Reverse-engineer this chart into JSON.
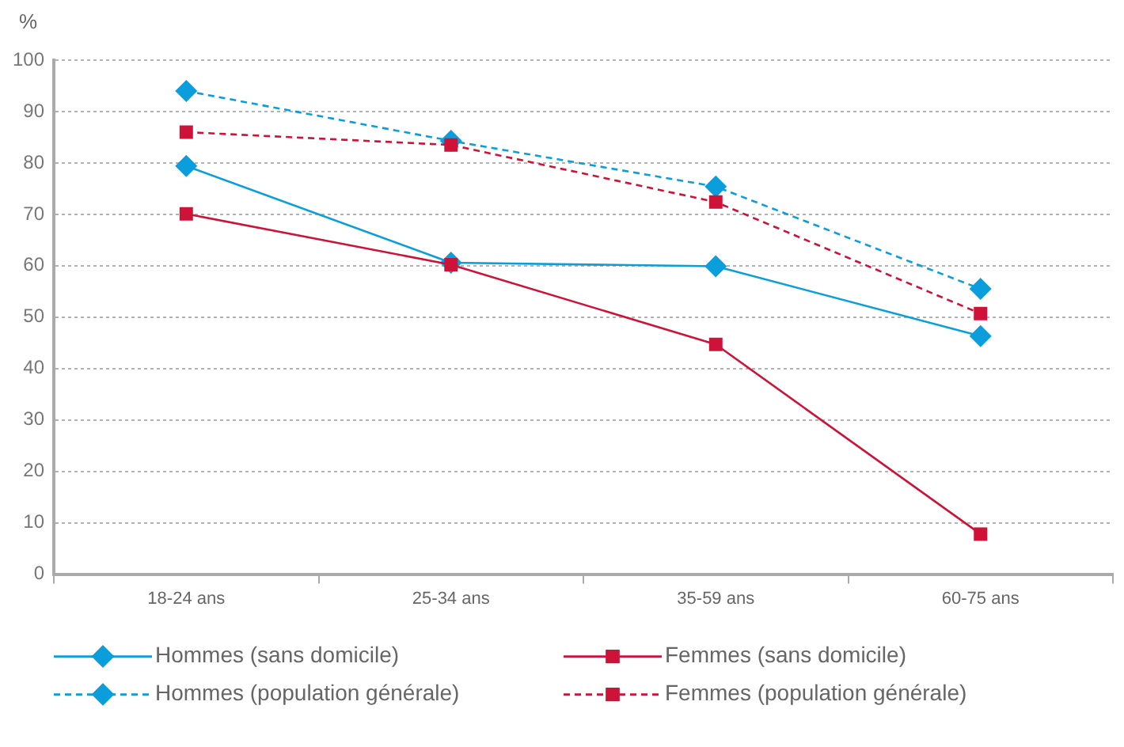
{
  "chart_data": {
    "type": "line",
    "ylabel": "%",
    "categories": [
      "18-24 ans",
      "25-34 ans",
      "35-59 ans",
      "60-75 ans"
    ],
    "series": [
      {
        "name": "Hommes (sans domicile)",
        "color": "#0a9fdc",
        "marker": "diamond",
        "line_style": "solid",
        "values": [
          79.4,
          60.6,
          59.9,
          46.3
        ]
      },
      {
        "name": "Femmes (sans domicile)",
        "color": "#cf1237",
        "marker": "square",
        "line_style": "solid",
        "values": [
          70.1,
          60.2,
          44.7,
          7.8
        ]
      },
      {
        "name": "Hommes (population générale)",
        "color": "#0a9fdc",
        "marker": "diamond",
        "line_style": "dashed",
        "values": [
          94.0,
          84.3,
          75.4,
          55.5
        ]
      },
      {
        "name": "Femmes (population générale)",
        "color": "#cf1237",
        "marker": "square",
        "line_style": "dashed",
        "values": [
          86.0,
          83.5,
          72.4,
          50.7
        ]
      }
    ],
    "ylim": [
      0,
      100
    ],
    "yticks": [
      0,
      10,
      20,
      30,
      40,
      50,
      60,
      70,
      80,
      90,
      100
    ],
    "grid": "y",
    "legend": "bottom"
  }
}
